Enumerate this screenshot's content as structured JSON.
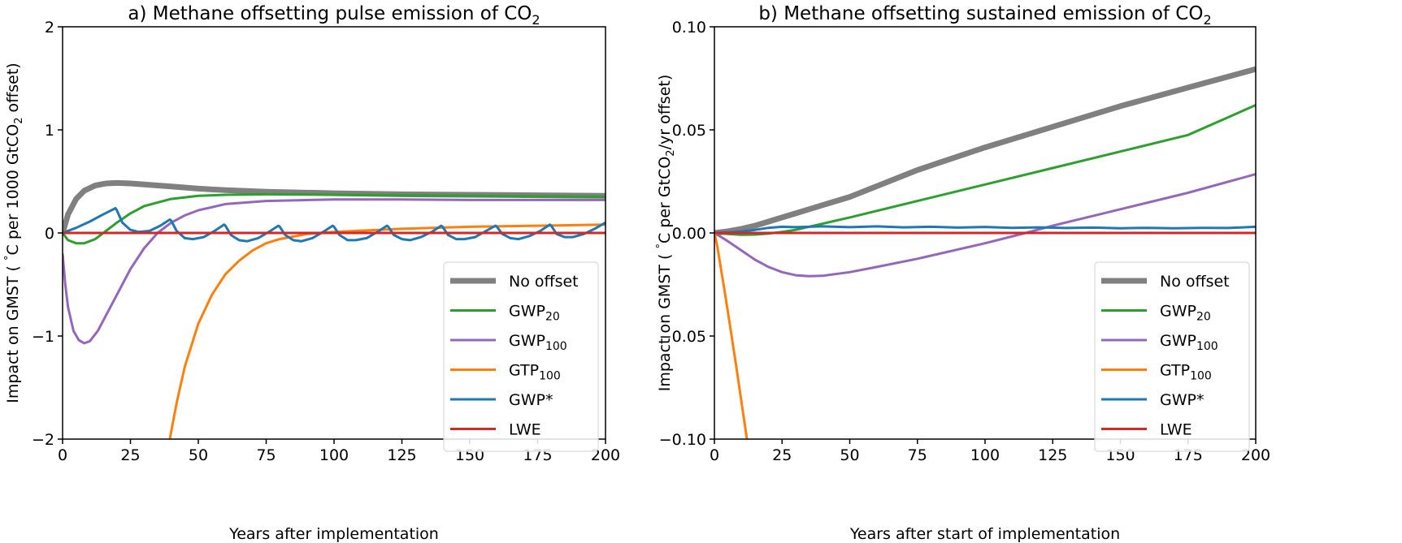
{
  "chart_data": [
    {
      "type": "line",
      "title": "a) Methane offsetting pulse emission of CO",
      "title_sub": "2",
      "xlabel": "Years after implementation",
      "ylabel_parts": [
        "Impact on GMST ( ",
        "°",
        "C per 1000 GtCO",
        "2",
        " offset)"
      ],
      "xlim": [
        0,
        200
      ],
      "ylim": [
        -2,
        2
      ],
      "xticks": [
        0,
        25,
        50,
        75,
        100,
        125,
        150,
        175,
        200
      ],
      "yticks": [
        -2,
        -1,
        0,
        1,
        2
      ],
      "ytick_labels": [
        "−2",
        "−1",
        "0",
        "1",
        "2"
      ],
      "grid": false,
      "legend_position": "lower-right",
      "series": [
        {
          "name": "No offset",
          "label": "No offset",
          "sub": "",
          "color": "#808080",
          "width": 7,
          "x": [
            0,
            2,
            5,
            8,
            12,
            16,
            20,
            25,
            30,
            40,
            50,
            60,
            75,
            100,
            125,
            150,
            175,
            200
          ],
          "y": [
            0,
            0.18,
            0.33,
            0.41,
            0.46,
            0.48,
            0.485,
            0.48,
            0.47,
            0.45,
            0.43,
            0.415,
            0.4,
            0.385,
            0.375,
            0.37,
            0.365,
            0.36
          ]
        },
        {
          "name": "GWP20",
          "label": "GWP",
          "sub": "20",
          "color": "#2ca02c",
          "width": 3,
          "x": [
            0,
            2,
            5,
            8,
            12,
            16,
            20,
            25,
            30,
            40,
            50,
            60,
            75,
            100,
            125,
            150,
            175,
            200
          ],
          "y": [
            0,
            -0.07,
            -0.1,
            -0.1,
            -0.06,
            0.02,
            0.1,
            0.19,
            0.26,
            0.33,
            0.36,
            0.37,
            0.375,
            0.37,
            0.365,
            0.36,
            0.355,
            0.35
          ]
        },
        {
          "name": "GWP100",
          "label": "GWP",
          "sub": "100",
          "color": "#9467bd",
          "width": 3,
          "x": [
            0,
            1,
            2,
            4,
            6,
            8,
            10,
            13,
            16,
            20,
            25,
            30,
            35,
            40,
            45,
            50,
            60,
            75,
            100,
            125,
            150,
            175,
            200
          ],
          "y": [
            -0.2,
            -0.5,
            -0.72,
            -0.95,
            -1.04,
            -1.07,
            -1.05,
            -0.95,
            -0.8,
            -0.6,
            -0.35,
            -0.15,
            0.0,
            0.1,
            0.17,
            0.22,
            0.28,
            0.31,
            0.325,
            0.325,
            0.32,
            0.32,
            0.32
          ]
        },
        {
          "name": "GTP100",
          "label": "GTP",
          "sub": "100",
          "color": "#ff7f0e",
          "width": 3,
          "x": [
            39.5,
            42,
            45,
            50,
            55,
            60,
            65,
            70,
            75,
            80,
            90,
            100,
            125,
            150,
            175,
            200
          ],
          "y": [
            -2.0,
            -1.65,
            -1.3,
            -0.88,
            -0.6,
            -0.4,
            -0.27,
            -0.17,
            -0.1,
            -0.06,
            -0.01,
            0.01,
            0.04,
            0.06,
            0.07,
            0.08
          ]
        },
        {
          "name": "GWP*",
          "label": "GWP*",
          "sub": "",
          "color": "#1f77b4",
          "width": 3,
          "x": [
            0,
            5,
            10,
            15,
            19.5,
            20,
            22,
            25,
            28,
            32,
            36,
            39.5,
            40,
            42,
            45,
            48,
            52,
            56,
            59.5,
            60,
            62,
            65,
            68,
            72,
            76,
            79.5,
            80,
            82,
            85,
            88,
            92,
            96,
            99.5,
            100,
            102,
            105,
            108,
            112,
            116,
            119.5,
            120,
            122,
            125,
            128,
            132,
            136,
            139.5,
            140,
            142,
            145,
            148,
            152,
            156,
            159.5,
            160,
            162,
            165,
            168,
            172,
            176,
            179.5,
            180,
            182,
            185,
            188,
            192,
            196,
            200
          ],
          "y": [
            0,
            0.05,
            0.11,
            0.18,
            0.24,
            0.22,
            0.1,
            0.03,
            0.01,
            0.02,
            0.07,
            0.13,
            0.12,
            0.02,
            -0.05,
            -0.06,
            -0.04,
            0.02,
            0.08,
            0.07,
            -0.02,
            -0.07,
            -0.08,
            -0.05,
            0.01,
            0.07,
            0.06,
            -0.02,
            -0.07,
            -0.08,
            -0.05,
            0.01,
            0.07,
            0.06,
            -0.02,
            -0.07,
            -0.07,
            -0.05,
            0.01,
            0.07,
            0.06,
            -0.02,
            -0.06,
            -0.07,
            -0.04,
            0.01,
            0.07,
            0.06,
            -0.02,
            -0.06,
            -0.06,
            -0.04,
            0.02,
            0.07,
            0.06,
            -0.01,
            -0.05,
            -0.06,
            -0.03,
            0.02,
            0.08,
            0.07,
            -0.01,
            -0.04,
            -0.04,
            -0.01,
            0.04,
            0.1
          ]
        },
        {
          "name": "LWE",
          "label": "LWE",
          "sub": "",
          "color": "#d62728",
          "width": 3,
          "x": [
            0,
            200
          ],
          "y": [
            0,
            0
          ]
        }
      ]
    },
    {
      "type": "line",
      "title": "b) Methane offsetting sustained emission of CO",
      "title_sub": "2",
      "xlabel": "Years after start of implementation",
      "ylabel_parts": [
        "Impact on GMST ( ",
        "°",
        "C per GtCO",
        "2",
        "/yr offset)"
      ],
      "xlim": [
        0,
        200
      ],
      "ylim": [
        -0.1,
        0.1
      ],
      "xticks": [
        0,
        25,
        50,
        75,
        100,
        125,
        150,
        175,
        200
      ],
      "yticks": [
        -0.1,
        -0.05,
        0.0,
        0.05,
        0.1
      ],
      "ytick_labels": [
        "−0.10",
        "−0.05",
        "0.00",
        "0.05",
        "0.10"
      ],
      "grid": false,
      "legend_position": "lower-right",
      "series": [
        {
          "name": "No offset",
          "label": "No offset",
          "sub": "",
          "color": "#808080",
          "width": 7,
          "x": [
            0,
            5,
            10,
            15,
            20,
            25,
            30,
            40,
            50,
            75,
            100,
            125,
            150,
            175,
            200
          ],
          "y": [
            0,
            0.0008,
            0.002,
            0.0035,
            0.0055,
            0.0075,
            0.0095,
            0.0135,
            0.0175,
            0.0305,
            0.0415,
            0.0515,
            0.0615,
            0.0705,
            0.0795
          ]
        },
        {
          "name": "GWP20",
          "label": "GWP",
          "sub": "20",
          "color": "#2ca02c",
          "width": 3,
          "x": [
            0,
            5,
            10,
            15,
            20,
            25,
            30,
            40,
            50,
            75,
            100,
            125,
            150,
            175,
            200
          ],
          "y": [
            0,
            -0.0005,
            -0.0009,
            -0.0008,
            -0.0003,
            0.0005,
            0.0015,
            0.0045,
            0.0075,
            0.0155,
            0.0235,
            0.0315,
            0.0395,
            0.0475,
            0.062
          ]
        },
        {
          "name": "GWP100",
          "label": "GWP",
          "sub": "100",
          "color": "#9467bd",
          "width": 3,
          "x": [
            0,
            5,
            10,
            15,
            20,
            25,
            30,
            35,
            40,
            50,
            60,
            75,
            100,
            115,
            125,
            150,
            175,
            200
          ],
          "y": [
            0,
            -0.004,
            -0.0085,
            -0.013,
            -0.0165,
            -0.019,
            -0.0205,
            -0.021,
            -0.0208,
            -0.019,
            -0.0165,
            -0.0125,
            -0.005,
            0.0,
            0.0035,
            0.0115,
            0.0195,
            0.0285
          ]
        },
        {
          "name": "GTP100",
          "label": "GTP",
          "sub": "100",
          "color": "#ff7f0e",
          "width": 3,
          "x": [
            0,
            1,
            2,
            4,
            6,
            8,
            10,
            12
          ],
          "y": [
            0,
            -0.006,
            -0.014,
            -0.03,
            -0.047,
            -0.064,
            -0.082,
            -0.1
          ]
        },
        {
          "name": "GWP*",
          "label": "GWP*",
          "sub": "",
          "color": "#1f77b4",
          "width": 3,
          "x": [
            0,
            5,
            10,
            15,
            20,
            25,
            30,
            40,
            50,
            60,
            70,
            80,
            90,
            100,
            110,
            120,
            130,
            140,
            150,
            160,
            170,
            180,
            190,
            200
          ],
          "y": [
            0,
            0.0003,
            0.0008,
            0.0015,
            0.0025,
            0.003,
            0.0028,
            0.0032,
            0.0028,
            0.0032,
            0.0027,
            0.003,
            0.0026,
            0.0029,
            0.0025,
            0.0027,
            0.0024,
            0.0026,
            0.0023,
            0.0025,
            0.0023,
            0.0025,
            0.0024,
            0.003
          ]
        },
        {
          "name": "LWE",
          "label": "LWE",
          "sub": "",
          "color": "#d62728",
          "width": 3,
          "x": [
            0,
            200
          ],
          "y": [
            0,
            0
          ]
        }
      ]
    }
  ]
}
